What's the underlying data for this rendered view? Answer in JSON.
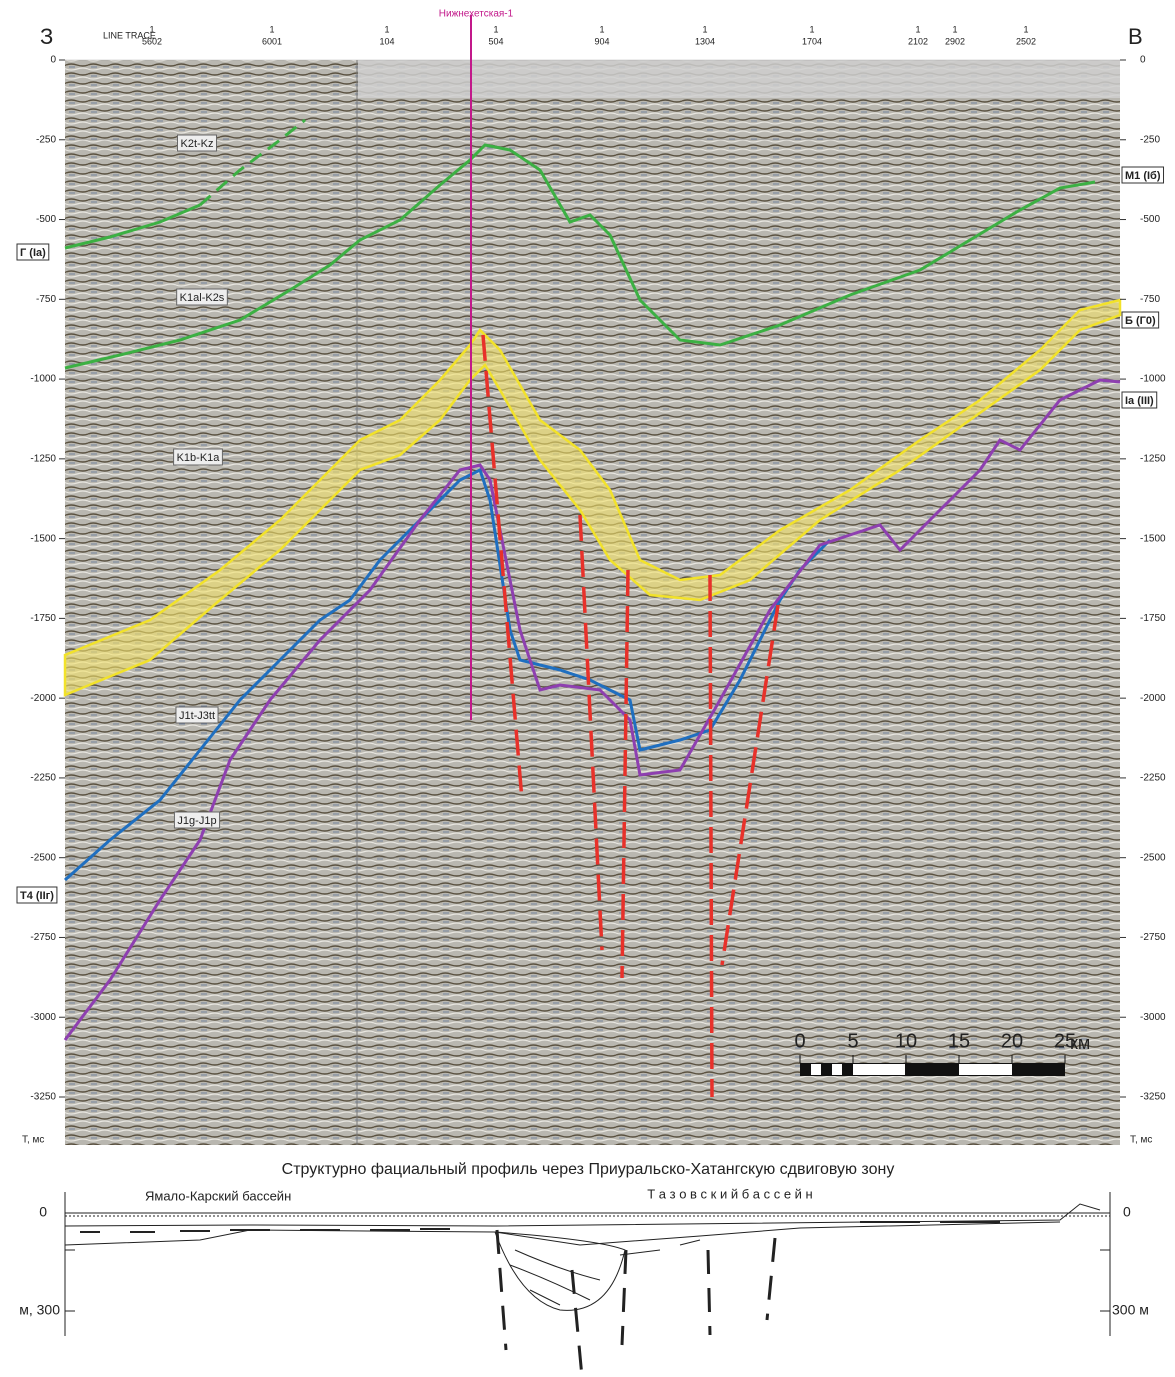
{
  "header": {
    "west": "З",
    "east": "В",
    "line_trace_label": "LINE TRACE",
    "well": "Нижнехетская-1",
    "traces": [
      {
        "line": "1",
        "trace": "5602"
      },
      {
        "line": "1",
        "trace": "6001"
      },
      {
        "line": "1",
        "trace": "104"
      },
      {
        "line": "1",
        "trace": "504"
      },
      {
        "line": "1",
        "trace": "904"
      },
      {
        "line": "1",
        "trace": "1304"
      },
      {
        "line": "1",
        "trace": "1704"
      },
      {
        "line": "1",
        "trace": "2102"
      },
      {
        "line": "1",
        "trace": "2902"
      },
      {
        "line": "1",
        "trace": "2502"
      }
    ]
  },
  "axis": {
    "ticks": [
      0,
      -250,
      -500,
      -750,
      -1000,
      -1250,
      -1500,
      -1750,
      -2000,
      -2250,
      -2500,
      -2750,
      -3000,
      -3250
    ],
    "unit": "Т, мс"
  },
  "horizons": [
    "Г (Ia)",
    "T4 (IIг)",
    "M1 (Iб)",
    "Б (Г0)",
    "Ia (III)"
  ],
  "intervals": [
    "K2t-Kz",
    "K1al-K2s",
    "K1b-K1a",
    "J1t-J3tt",
    "J1g-J1p"
  ],
  "scale_bar": {
    "ticks": [
      0,
      5,
      10,
      15,
      20,
      25
    ],
    "unit": "км"
  },
  "profile": {
    "title": "Структурно фациальный профиль через Приуральско-Хатангскую сдвиговую зону",
    "basins": [
      "Ямало-Карский бассейн",
      "Т а з о в с к и й б а с с е й н"
    ],
    "left_labels": [
      "0",
      "м, 300"
    ],
    "right_labels": [
      "0",
      "300 м"
    ]
  }
}
